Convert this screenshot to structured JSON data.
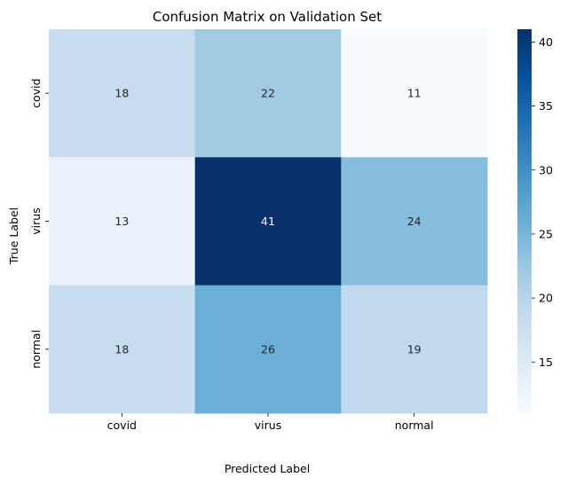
{
  "chart_data": {
    "type": "heatmap",
    "title": "Confusion Matrix on Validation Set",
    "xlabel": "Predicted Label",
    "ylabel": "True Label",
    "x_categories": [
      "covid",
      "virus",
      "normal"
    ],
    "y_categories": [
      "covid",
      "virus",
      "normal"
    ],
    "matrix": [
      [
        18,
        22,
        11
      ],
      [
        13,
        41,
        24
      ],
      [
        18,
        26,
        19
      ]
    ],
    "colormap": "Blues",
    "color_range": [
      11,
      41
    ],
    "colorbar_ticks": [
      15,
      20,
      25,
      30,
      35,
      40
    ],
    "annotate": true,
    "grid": false
  }
}
